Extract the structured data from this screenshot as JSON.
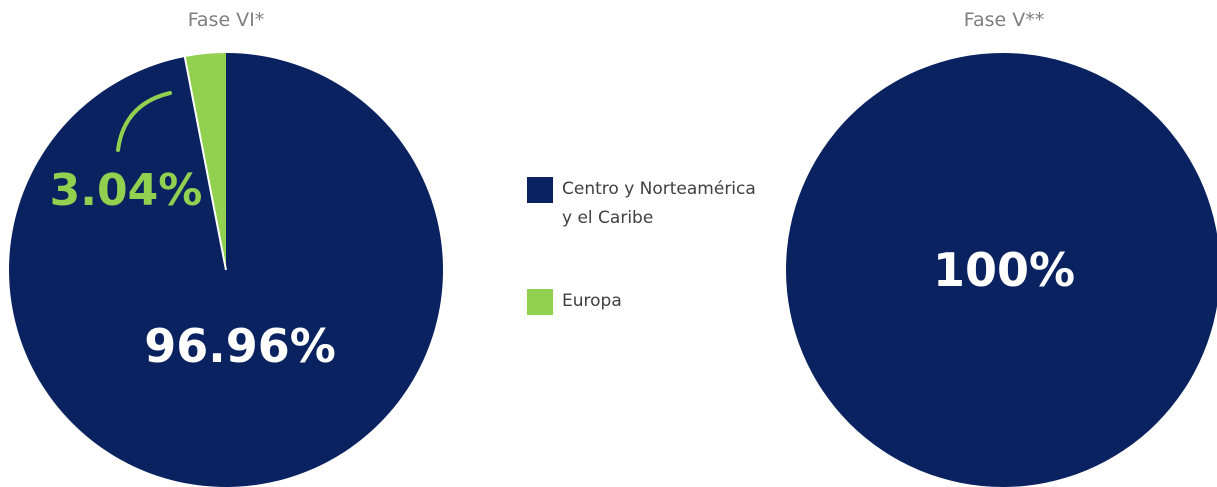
{
  "colors": {
    "centro": "#0a2360",
    "europa": "#92d050",
    "title": "#7f7f7f",
    "legend_text": "#404040"
  },
  "legend": [
    {
      "label": "Centro y Norteamérica y el Caribe",
      "color": "#0a2360"
    },
    {
      "label": "Europa",
      "color": "#92d050"
    }
  ],
  "chart_data": [
    {
      "type": "pie",
      "title": "Fase VI*",
      "slices": [
        {
          "label": "Centro y Norteamérica y el Caribe",
          "value": 96.96,
          "display": "96.96%",
          "color": "#0a2360"
        },
        {
          "label": "Europa",
          "value": 3.04,
          "display": "3.04%",
          "color": "#92d050"
        }
      ]
    },
    {
      "type": "pie",
      "title": "Fase V**",
      "slices": [
        {
          "label": "Centro y Norteamérica y el Caribe",
          "value": 100,
          "display": "100%",
          "color": "#0a2360"
        }
      ]
    }
  ]
}
